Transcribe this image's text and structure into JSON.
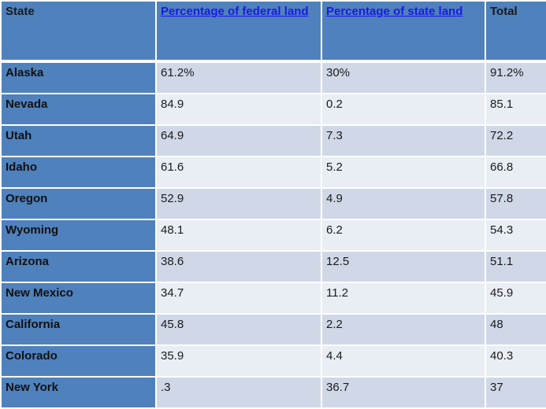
{
  "headers": {
    "state": "State",
    "federal": "Percentage of federal land",
    "stateland": "Percentage of state land",
    "total": "Total"
  },
  "rows": [
    {
      "state": "Alaska",
      "federal": "61.2%",
      "stateland": "30%",
      "total": "91.2%"
    },
    {
      "state": "Nevada",
      "federal": "84.9",
      "stateland": "0.2",
      "total": "85.1"
    },
    {
      "state": "Utah",
      "federal": "64.9",
      "stateland": "7.3",
      "total": "72.2"
    },
    {
      "state": "Idaho",
      "federal": "61.6",
      "stateland": "5.2",
      "total": "66.8"
    },
    {
      "state": "Oregon",
      "federal": "52.9",
      "stateland": "4.9",
      "total": "57.8"
    },
    {
      "state": "Wyoming",
      "federal": "48.1",
      "stateland": "6.2",
      "total": "54.3"
    },
    {
      "state": "Arizona",
      "federal": "38.6",
      "stateland": "12.5",
      "total": "51.1"
    },
    {
      "state": "New Mexico",
      "federal": "34.7",
      "stateland": "11.2",
      "total": "45.9"
    },
    {
      "state": "California",
      "federal": "45.8",
      "stateland": "2.2",
      "total": "48"
    },
    {
      "state": "Colorado",
      "federal": "35.9",
      "stateland": "4.4",
      "total": "40.3"
    },
    {
      "state": "New York",
      "federal": ".3",
      "stateland": "36.7",
      "total": "37"
    }
  ],
  "colors": {
    "header": "#4f81bd",
    "row_odd": "#d0d8e8",
    "row_even": "#e9edf4",
    "link": "#1a1ae6"
  }
}
